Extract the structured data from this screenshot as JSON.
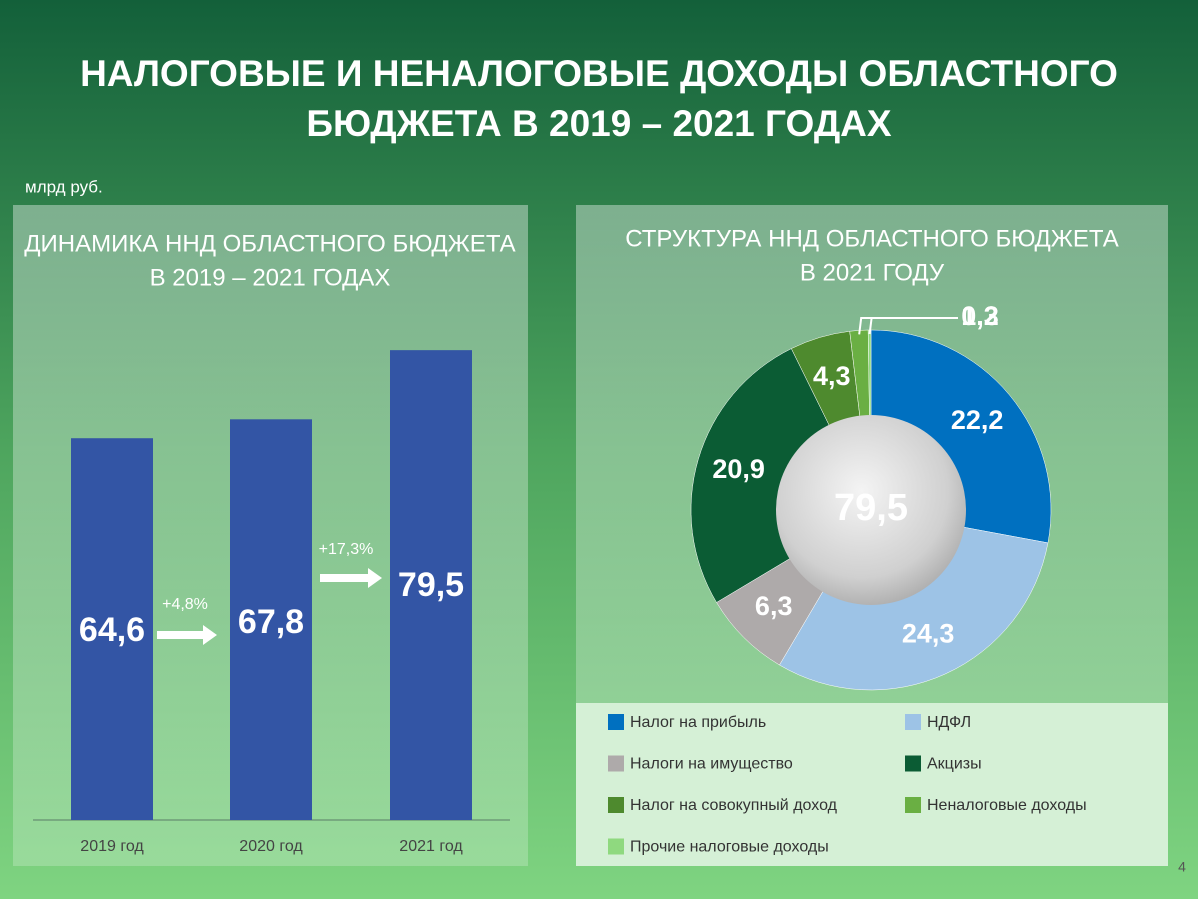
{
  "title_lines": [
    "НАЛОГОВЫЕ И НЕНАЛОГОВЫЕ ДОХОДЫ ОБЛАСТНОГО",
    "БЮДЖЕТА В 2019 – 2021 ГОДАХ"
  ],
  "unit": "млрд руб.",
  "page_number": 4,
  "chart_data": [
    {
      "type": "bar",
      "title_lines": [
        "ДИНАМИКА ННД ОБЛАСТНОГО БЮДЖЕТА",
        "В 2019 – 2021 ГОДАХ"
      ],
      "categories": [
        "2019 год",
        "2020 год",
        "2021 год"
      ],
      "values": [
        64.6,
        67.8,
        79.5
      ],
      "value_labels": [
        "64,6",
        "67,8",
        "79,5"
      ],
      "color": "#3355a5",
      "growth": [
        {
          "value": 4.8,
          "label": "+4,8%"
        },
        {
          "value": 17.3,
          "label": "+17,3%"
        }
      ]
    },
    {
      "type": "pie",
      "title_lines": [
        "СТРУКТУРА ННД ОБЛАСТНОГО БЮДЖЕТА",
        "В 2021 ГОДУ"
      ],
      "categories": [
        "Налог на прибыль",
        "НДФЛ",
        "Налоги на имущество",
        "Акцизы",
        "Налог на совокупный доход",
        "Неналоговые доходы",
        "Прочие налоговые доходы"
      ],
      "values": [
        22.2,
        24.3,
        6.3,
        20.9,
        4.3,
        1.3,
        0.2
      ],
      "value_labels": [
        "22,2",
        "24,3",
        "6,3",
        "20,9",
        "4,3",
        "1,3",
        "0,2"
      ],
      "colors": [
        "#0070c0",
        "#9dc3e6",
        "#aeaaaa",
        "#0b5c34",
        "#4e8a2e",
        "#6aaf43",
        "#8fd97f"
      ],
      "total": {
        "value": 79.5,
        "label": "79,5"
      }
    }
  ]
}
